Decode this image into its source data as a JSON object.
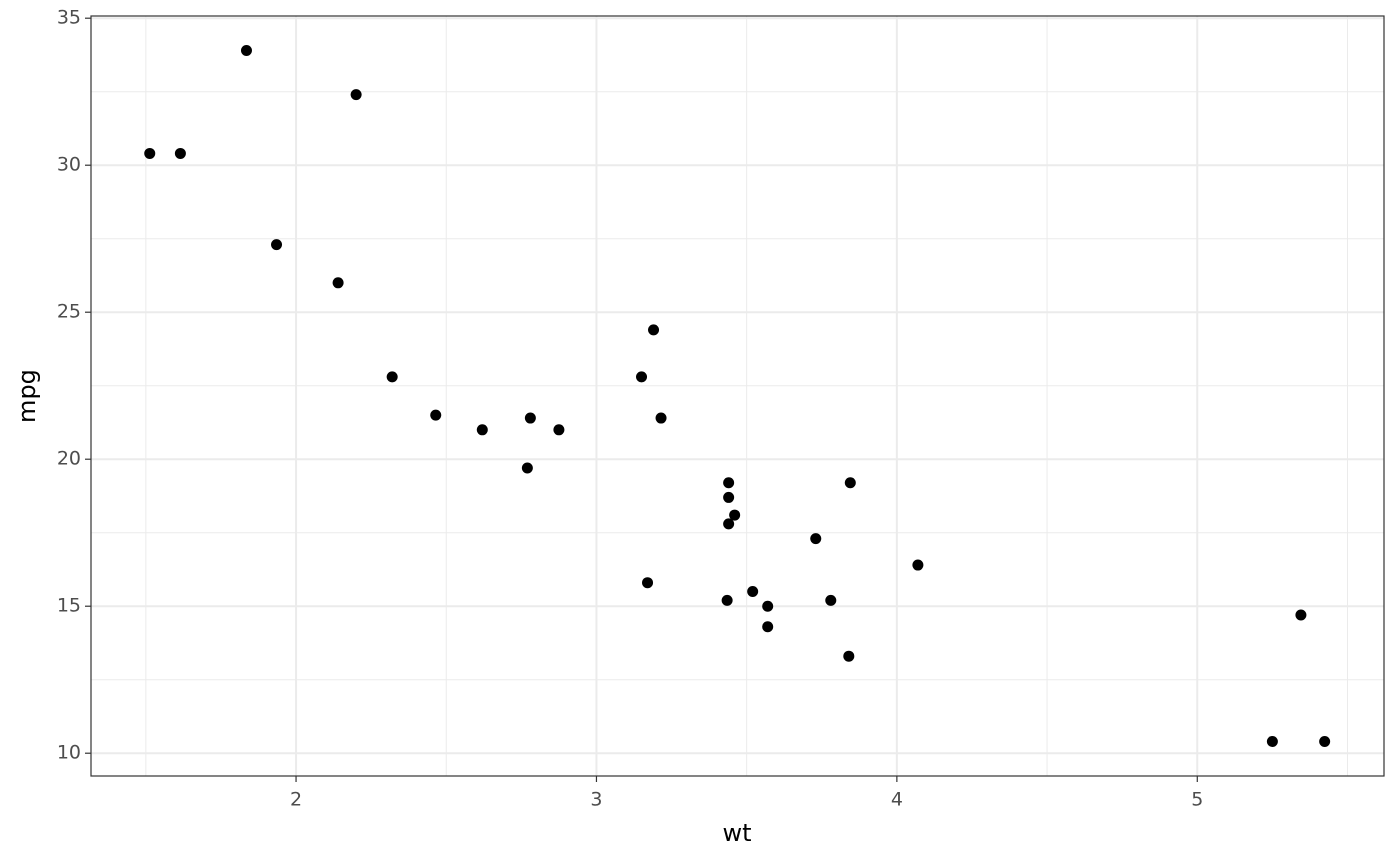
{
  "chart_data": {
    "type": "scatter",
    "x_label": "wt",
    "y_label": "mpg",
    "x": [
      2.62,
      2.875,
      2.32,
      3.215,
      3.44,
      3.46,
      3.57,
      3.19,
      3.15,
      3.44,
      3.44,
      4.07,
      3.73,
      3.78,
      5.25,
      5.424,
      5.345,
      2.2,
      1.615,
      1.835,
      2.465,
      3.52,
      3.435,
      3.84,
      3.845,
      1.935,
      2.14,
      1.513,
      3.17,
      2.77,
      3.57,
      2.78
    ],
    "values": [
      21.0,
      21.0,
      22.8,
      21.4,
      18.7,
      18.1,
      14.3,
      24.4,
      22.8,
      19.2,
      17.8,
      16.4,
      17.3,
      15.2,
      10.4,
      10.4,
      14.7,
      32.4,
      30.4,
      33.9,
      21.5,
      15.5,
      15.2,
      13.3,
      19.2,
      27.3,
      26.0,
      30.4,
      15.8,
      19.7,
      15.0,
      21.4
    ],
    "color": "#000000",
    "xlim": [
      1.31745,
      5.62155
    ],
    "ylim": [
      9.225,
      35.075
    ],
    "xticks": [
      2,
      3,
      4,
      5
    ],
    "yticks": [
      10,
      15,
      20,
      25,
      30,
      35
    ],
    "grid": true
  }
}
